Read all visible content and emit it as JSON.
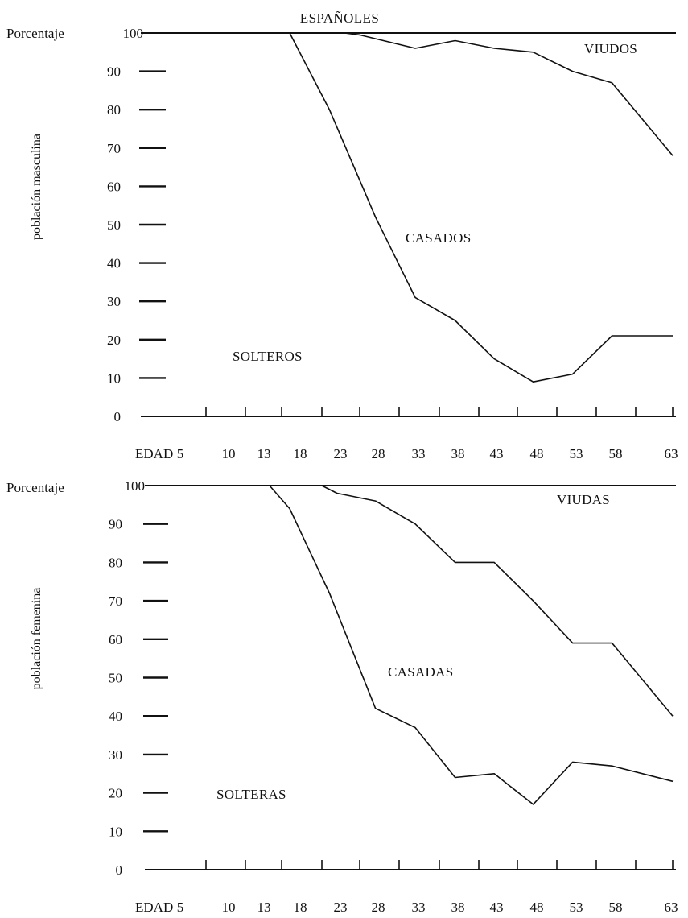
{
  "chart_data": {
    "title": "ESPAÑOLES",
    "type": "line",
    "x_axis_prefix": "EDAD",
    "x_ticks": [
      "5",
      "10",
      "13",
      "18",
      "23",
      "28",
      "33",
      "38",
      "43",
      "48",
      "53",
      "58",
      "63"
    ],
    "x_range": [
      0,
      63
    ],
    "panels": [
      {
        "ylabel": "población masculina",
        "ylabel_top": "Porcentaje",
        "y_ticks": [
          0,
          10,
          20,
          30,
          40,
          50,
          60,
          70,
          80,
          90,
          100
        ],
        "ylim": [
          0,
          100
        ],
        "series": [
          {
            "label": "VIUDOS",
            "x": [
              0,
              21,
              23,
              30,
              35,
              40,
              45,
              50,
              55,
              63
            ],
            "y": [
              100,
              100,
              99.5,
              96,
              98,
              96,
              95,
              90,
              87,
              68
            ]
          },
          {
            "label": "CASADOS",
            "x": [
              0,
              14,
              19,
              25,
              30,
              35,
              40,
              45,
              50,
              55,
              63
            ],
            "y": [
              100,
              100,
              80,
              52,
              31,
              25,
              15,
              9,
              11,
              21,
              21
            ]
          }
        ],
        "regions": [
          "VIUDOS",
          "CASADOS",
          "SOLTEROS"
        ]
      },
      {
        "ylabel": "población femenina",
        "ylabel_top": "Porcentaje",
        "y_ticks": [
          0,
          10,
          20,
          30,
          40,
          50,
          60,
          70,
          80,
          90,
          100
        ],
        "ylim": [
          0,
          100
        ],
        "series": [
          {
            "label": "VIUDAS",
            "x": [
              0,
              18,
              20,
              25,
              30,
              35,
              40,
              45,
              50,
              55,
              63
            ],
            "y": [
              100,
              100,
              98,
              96,
              90,
              80,
              80,
              70,
              59,
              59,
              40
            ]
          },
          {
            "label": "CASADAS",
            "x": [
              0,
              12,
              14,
              19,
              25,
              30,
              35,
              40,
              45,
              50,
              55,
              63
            ],
            "y": [
              100,
              100,
              94,
              72,
              42,
              37,
              24,
              25,
              17,
              28,
              27,
              23
            ]
          }
        ],
        "regions": [
          "VIUDAS",
          "CASADAS",
          "SOLTERAS"
        ]
      }
    ]
  }
}
